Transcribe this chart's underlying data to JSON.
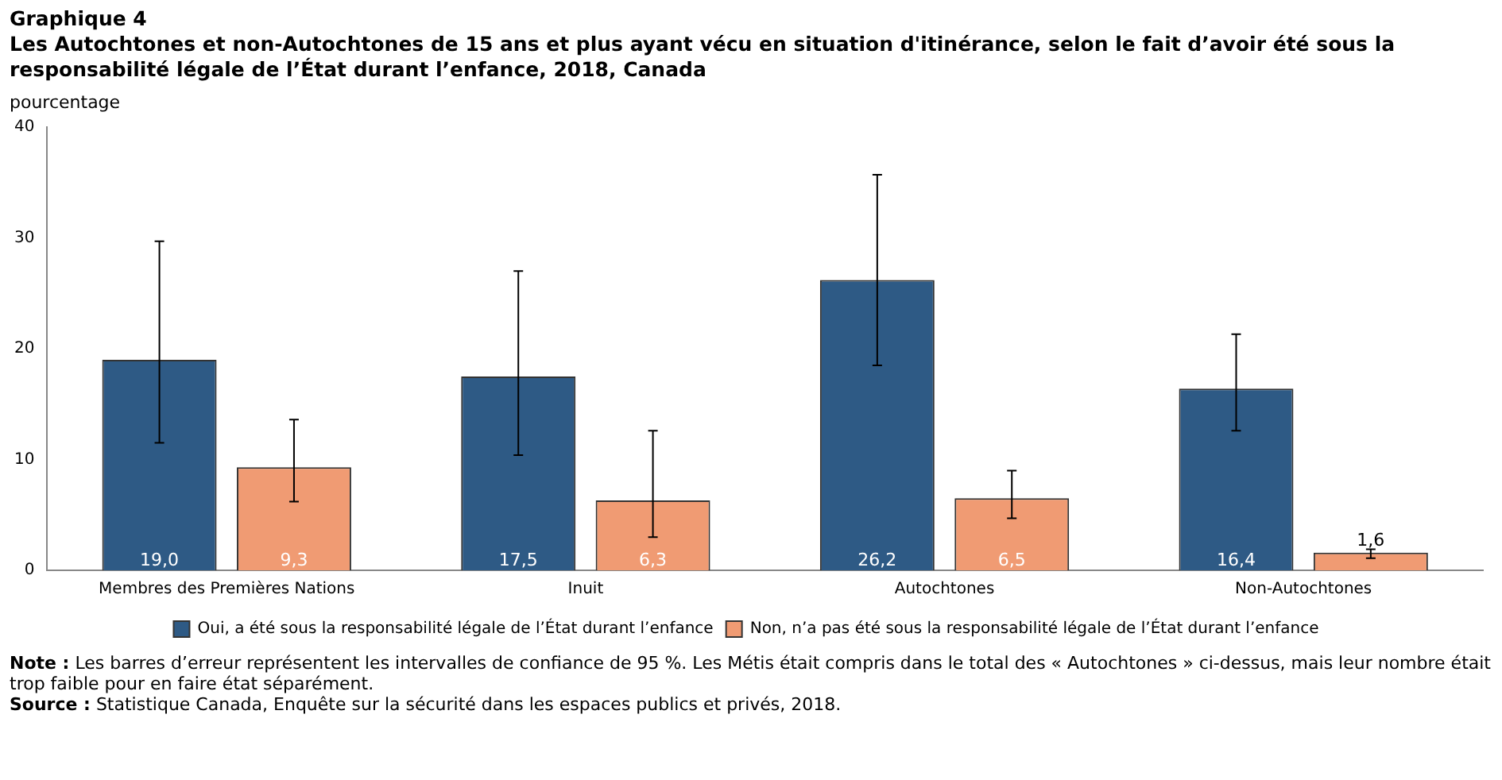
{
  "chart_data": {
    "type": "bar",
    "title": "Graphique 4",
    "subtitle": "Les Autochtones et non-Autochtones de 15 ans et plus ayant vécu en situation d'itinérance, selon le fait d’avoir été sous la responsabilité légale de l’État durant l’enfance, 2018, Canada",
    "ylabel": "pourcentage",
    "categories": [
      "Membres des Premières Nations",
      "Inuit",
      "Autochtones",
      "Non-Autochtones"
    ],
    "series": [
      {
        "name": "Oui, a été sous la responsabilité légale de l’État durant l’enfance",
        "color": "#2e5a85",
        "values": [
          19.0,
          17.5,
          26.2,
          16.4
        ],
        "value_labels": [
          "19,0",
          "17,5",
          "26,2",
          "16,4"
        ],
        "errors": [
          [
            11.5,
            29.7
          ],
          [
            10.4,
            27.0
          ],
          [
            18.5,
            35.7
          ],
          [
            12.6,
            21.3
          ]
        ]
      },
      {
        "name": "Non, n’a pas été sous la responsabilité légale de l’État durant l’enfance",
        "color": "#f09b73",
        "values": [
          9.3,
          6.3,
          6.5,
          1.6
        ],
        "value_labels": [
          "9,3",
          "6,3",
          "6,5",
          "1,6"
        ],
        "errors": [
          [
            6.2,
            13.6
          ],
          [
            3.0,
            12.6
          ],
          [
            4.7,
            9.0
          ],
          [
            1.1,
            1.9
          ]
        ]
      }
    ],
    "ylim": [
      0,
      40
    ],
    "yticks": [
      0,
      10,
      20,
      30,
      40
    ],
    "grid": false,
    "legend": "bottom",
    "annotations": [
      "Note : Les barres d’erreur représentent les intervalles de confiance de 95 %. Les Métis était compris dans le total des « Autochtones » ci-dessus, mais leur nombre était trop faible pour en faire état séparément.",
      "Source : Statistique Canada, Enquête sur la sécurité dans les espaces publics et privés, 2018."
    ]
  }
}
